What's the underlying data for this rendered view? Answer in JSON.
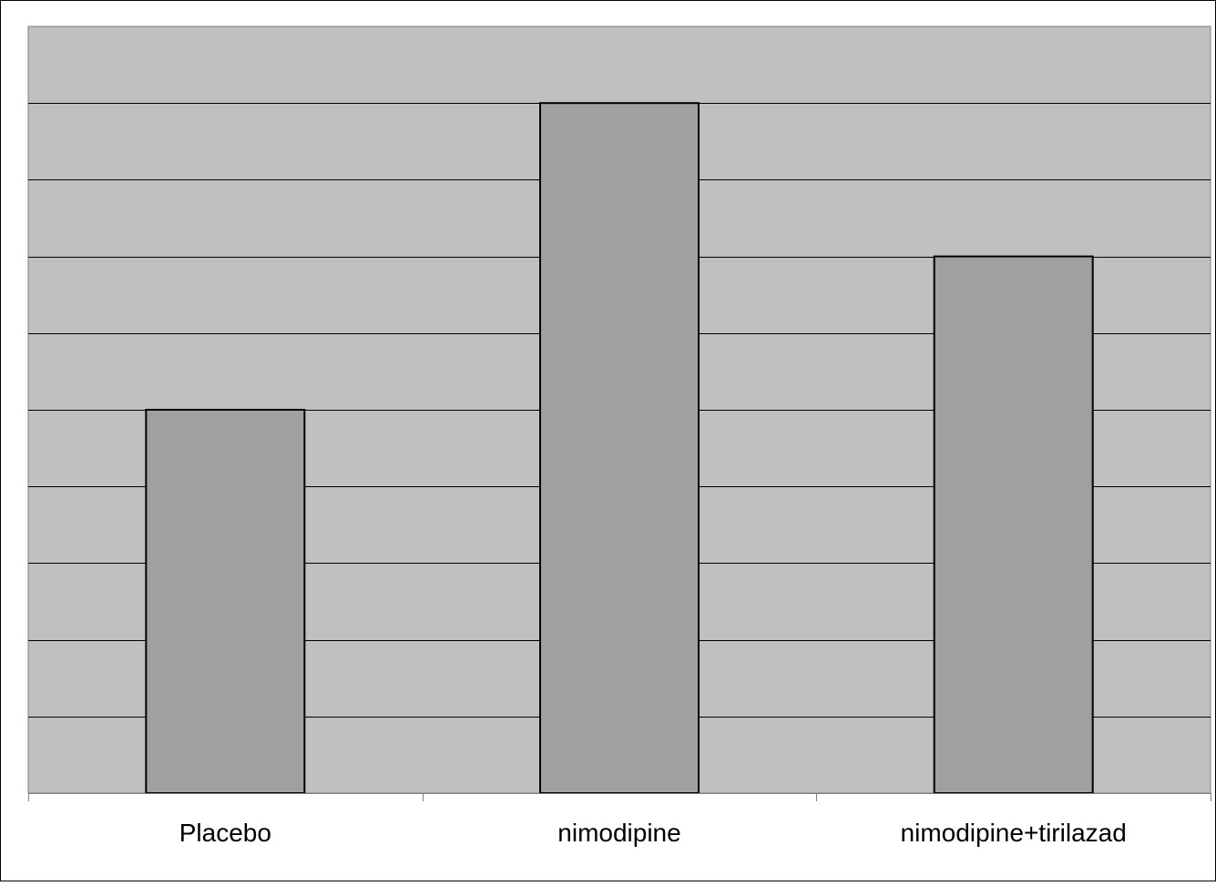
{
  "chart_data": {
    "type": "bar",
    "categories": [
      "Placebo",
      "nimodipine",
      "nimodipine+tirilazad"
    ],
    "values": [
      5,
      9,
      7
    ],
    "ylim": [
      0,
      10
    ],
    "grid": true,
    "gridline_count": 10,
    "title": "",
    "xlabel": "",
    "ylabel": "",
    "legend": "none"
  },
  "colors": {
    "plot_background": "#c0c0c0",
    "bar_fill": "#a0a0a0",
    "bar_stroke": "#000000",
    "gridline": "#000000",
    "axis": "#808080",
    "page_background": "#ffffff"
  }
}
